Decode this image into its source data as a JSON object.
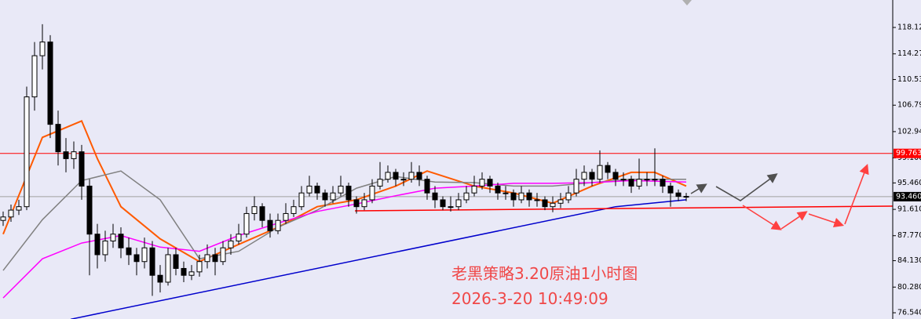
{
  "chart_data": {
    "type": "candlestick",
    "open": [
      90,
      90.5,
      91.5,
      92,
      108,
      114,
      116,
      104,
      100,
      99,
      100,
      95,
      88,
      85,
      87,
      88,
      86,
      85,
      84,
      86,
      82,
      81,
      85,
      83,
      82,
      82.5,
      84,
      85,
      84,
      86,
      87,
      88,
      91,
      92,
      90,
      88.5,
      90,
      91,
      92,
      94,
      95,
      94,
      93,
      94,
      95,
      93,
      92,
      93,
      95,
      96,
      97,
      96,
      96,
      97,
      96,
      94,
      93,
      92,
      92,
      93,
      94,
      95,
      96,
      95,
      94,
      94,
      93,
      94,
      93,
      93,
      92,
      92.5,
      93,
      94,
      96,
      97,
      96,
      98,
      97,
      96,
      96,
      95,
      96,
      96,
      96,
      95,
      94,
      93.5
    ],
    "high": [
      91.3,
      92.3,
      93,
      109.5,
      116,
      118.6,
      117,
      106,
      102,
      101.5,
      101,
      96,
      89.5,
      88.5,
      89.5,
      89,
      87.5,
      86,
      87.5,
      87,
      83.5,
      86,
      86,
      84,
      83.5,
      85,
      86.5,
      86,
      87,
      88,
      89.5,
      92,
      93.5,
      92.5,
      91,
      91,
      92.5,
      93,
      95,
      96.5,
      95.5,
      94.5,
      95,
      96.5,
      95.5,
      93.5,
      94,
      96,
      98.5,
      98,
      97.5,
      97,
      98.5,
      98,
      96.5,
      95,
      93.5,
      93.5,
      94,
      95,
      96.5,
      97,
      96.5,
      95.5,
      95,
      94.5,
      95,
      94.5,
      94,
      93.5,
      93.5,
      94,
      95,
      97.5,
      98,
      97.5,
      100.2,
      98.5,
      97.5,
      97,
      96.5,
      99,
      97,
      100.5,
      96.5,
      95.5,
      94.5,
      94
    ],
    "low": [
      89.2,
      89.8,
      90.8,
      91.5,
      106,
      112,
      102,
      98,
      97,
      97.5,
      93,
      82,
      83,
      84,
      86,
      84.5,
      83.5,
      82,
      83,
      79,
      79.5,
      80.5,
      82,
      81,
      81.3,
      81.8,
      83,
      82,
      83.5,
      85,
      86.5,
      87.5,
      90,
      89,
      87.5,
      88,
      89.5,
      90.5,
      91.5,
      93.5,
      93,
      92,
      92.5,
      93.5,
      92,
      91,
      91.5,
      92.5,
      94.5,
      95.5,
      95,
      95,
      95.5,
      95,
      93,
      91.8,
      91.5,
      91.3,
      91.5,
      92.5,
      93.5,
      94.5,
      94,
      93,
      93,
      92,
      92.5,
      92,
      92,
      91.5,
      91.2,
      91.8,
      92.5,
      93.5,
      95,
      95,
      95.5,
      96,
      95,
      95,
      94,
      94.5,
      95,
      95,
      94,
      92,
      92.8,
      92.8
    ],
    "close": [
      90.5,
      91.5,
      92,
      108,
      114,
      116,
      104,
      100,
      99,
      100,
      95,
      88,
      85,
      87,
      88,
      86,
      85,
      84,
      86,
      82,
      81,
      85,
      83,
      82,
      82.5,
      84,
      85,
      84,
      86,
      87,
      88,
      91,
      92,
      90,
      88.5,
      90,
      91,
      92,
      94,
      95,
      94,
      93,
      94,
      95,
      93,
      92,
      93,
      95,
      96,
      97,
      96,
      96,
      97,
      96,
      94,
      93,
      92,
      92,
      93,
      94,
      95,
      96,
      95,
      94,
      94,
      93,
      94,
      93,
      93,
      92,
      92.5,
      93,
      94,
      96,
      97,
      96,
      98,
      97,
      96,
      96,
      95,
      96,
      96,
      96,
      95,
      94,
      93.5,
      93.4
    ],
    "up_color": "#ffffff",
    "down_color": "#000000",
    "lines": [
      {
        "color": "#ff5a00",
        "x": [
          0,
          5,
          10,
          12,
          15,
          20,
          25,
          30,
          35,
          40,
          45,
          50,
          54,
          60,
          65,
          70,
          75,
          80,
          83,
          87
        ],
        "values": [
          88,
          102.1,
          104.5,
          99,
          92,
          87.3,
          84,
          86.5,
          89,
          92,
          93,
          95,
          97.2,
          95,
          94,
          92.5,
          95,
          97,
          97,
          95
        ]
      },
      {
        "color": "#808080",
        "x": [
          0,
          5,
          10,
          15,
          20,
          25,
          30,
          35,
          40,
          45,
          50,
          55,
          60,
          65,
          70,
          75,
          80,
          87
        ],
        "values": [
          82.7,
          90.1,
          95.8,
          97.2,
          93,
          84.4,
          85.5,
          89,
          91.5,
          94.7,
          96.4,
          95.6,
          95.5,
          95,
          95,
          95.5,
          96,
          96
        ]
      },
      {
        "color": "#ff00ff",
        "x": [
          0,
          5,
          10,
          15,
          20,
          25,
          30,
          35,
          40,
          45,
          50,
          55,
          60,
          65,
          70,
          75,
          80,
          87
        ],
        "values": [
          78.7,
          84.4,
          86.7,
          87.8,
          86.1,
          85.5,
          87.8,
          89.6,
          91.3,
          92.4,
          93.6,
          94.7,
          95,
          95.4,
          95.4,
          95.5,
          95.8,
          95.6
        ]
      },
      {
        "color": "#0000cc",
        "x": [
          8.6,
          78,
          87
        ],
        "values": [
          75.6,
          92,
          93
        ]
      },
      {
        "color": "#ff0000",
        "x": [
          44.8,
          113.3
        ],
        "values": [
          91.39,
          92.08
        ]
      }
    ],
    "hlines": [
      {
        "value": 99.763,
        "label": "99.763",
        "color": "#ff0000",
        "label_bg": "#ff0000"
      },
      {
        "value": 93.46,
        "label": "93.460",
        "color": "#a0a0a0",
        "label_bg": "#000000"
      }
    ],
    "ylim": [
      75.63,
      122.12
    ],
    "yticks": [
      {
        "value": 118.12,
        "label": "118.120"
      },
      {
        "value": 114.27,
        "label": "114.270"
      },
      {
        "value": 110.53,
        "label": "110.530"
      },
      {
        "value": 106.79,
        "label": "106.790"
      },
      {
        "value": 102.94,
        "label": "102.940"
      },
      {
        "value": 99.1,
        "label": "99.100"
      },
      {
        "value": 95.46,
        "label": "95.460"
      },
      {
        "value": 91.61,
        "label": "91.610"
      },
      {
        "value": 87.77,
        "label": "87.770"
      },
      {
        "value": 84.13,
        "label": "84.130"
      },
      {
        "value": 80.28,
        "label": "80.280"
      },
      {
        "value": 76.54,
        "label": "76.540"
      }
    ],
    "annotations": [
      "老黑策略3.20原油1小时图",
      "2026-3-20 10:49:09"
    ]
  }
}
